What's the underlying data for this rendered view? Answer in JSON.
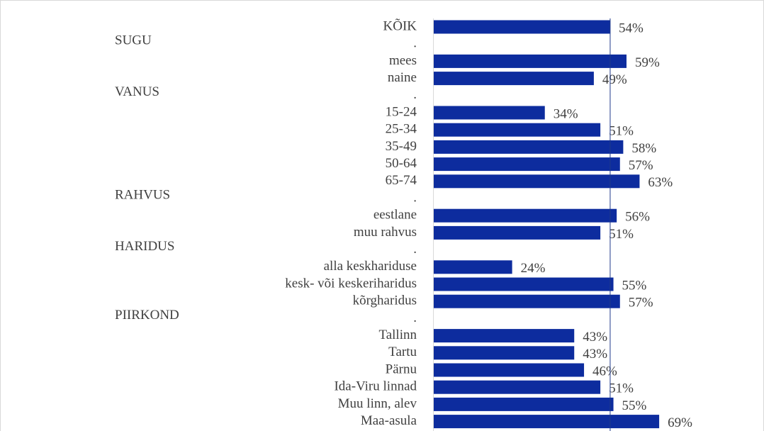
{
  "chart_data": {
    "type": "bar",
    "orientation": "horizontal",
    "categories": [
      "KÕIK",
      ".",
      "mees",
      "naine",
      ".",
      "15-24",
      "25-34",
      "35-49",
      "50-64",
      "65-74",
      ".",
      "eestlane",
      "muu rahvus",
      ".",
      "alla keskhariduse",
      "kesk- või keskeriharidus",
      "kõrgharidus",
      ".",
      "Tallinn",
      "Tartu",
      "Pärnu",
      "Ida-Viru linnad",
      "Muu linn, alev",
      "Maa-asula"
    ],
    "values": [
      54,
      null,
      59,
      49,
      null,
      34,
      51,
      58,
      57,
      63,
      null,
      56,
      51,
      null,
      24,
      55,
      57,
      null,
      43,
      43,
      46,
      51,
      55,
      69
    ],
    "value_labels": [
      "54%",
      null,
      "59%",
      "49%",
      null,
      "34%",
      "51%",
      "58%",
      "57%",
      "63%",
      null,
      "56%",
      "51%",
      null,
      "24%",
      "55%",
      "57%",
      null,
      "43%",
      "43%",
      "46%",
      "51%",
      "55%",
      "69%"
    ],
    "groups": [
      {
        "label": "SUGU",
        "row": 1
      },
      {
        "label": "VANUS",
        "row": 4
      },
      {
        "label": "RAHVUS",
        "row": 10
      },
      {
        "label": "HARIDUS",
        "row": 13
      },
      {
        "label": "PIIRKOND",
        "row": 17
      }
    ],
    "color": "#0d2c9e",
    "reference_line": 54,
    "xlim": [
      0,
      100
    ]
  }
}
